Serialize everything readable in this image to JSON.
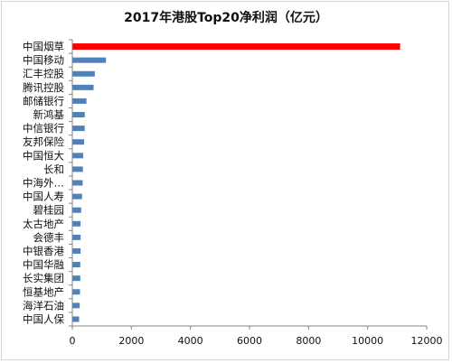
{
  "chart_data": {
    "type": "bar",
    "orientation": "horizontal",
    "title": "2017年港股Top20净利润（亿元）",
    "xlabel": "",
    "ylabel": "",
    "categories": [
      "中国烟草",
      "中国移动",
      "汇丰控股",
      "腾讯控股",
      "邮储银行",
      "新鸿基",
      "中信银行",
      "友邦保险",
      "中国恒大",
      "长和",
      "中海外…",
      "中国人寿",
      "碧桂园",
      "太古地产",
      "会德丰",
      "中银香港",
      "中国华融",
      "长实集团",
      "恒基地产",
      "海洋石油",
      "中国人保"
    ],
    "values": [
      11100,
      1140,
      760,
      720,
      480,
      420,
      420,
      400,
      370,
      360,
      350,
      330,
      300,
      280,
      280,
      280,
      270,
      270,
      260,
      250,
      230
    ],
    "xlim": [
      0,
      12000
    ],
    "xticks": [
      "0",
      "2000",
      "4000",
      "6000",
      "8000",
      "10000",
      "12000"
    ],
    "grid": false,
    "legend": "none",
    "colors": {
      "highlight": "#ff0000",
      "bar": "#4f81bd",
      "axis": "#868686"
    }
  }
}
